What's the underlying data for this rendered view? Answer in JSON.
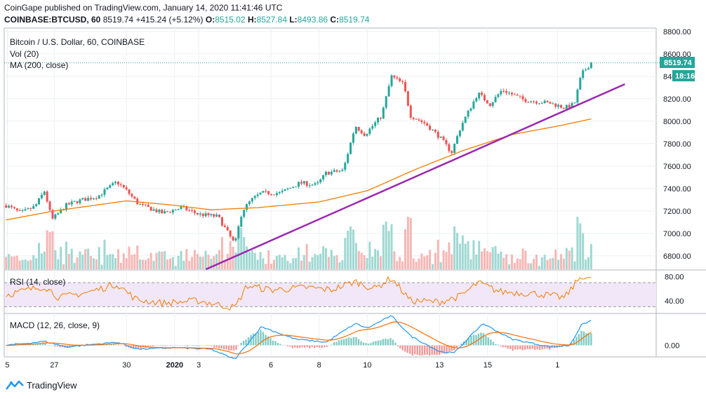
{
  "header": {
    "line1": "CoinGape published on TradingView.com, January 14, 2020 11:41:46 UTC",
    "symbol": "COINBASE:BTCUSD, 60",
    "last": "8519.74",
    "change": "+415.24 (+5.12%)",
    "open_label": "O:",
    "open": "8515.02",
    "high_label": "H:",
    "high": "8527.84",
    "low_label": "L:",
    "low": "8493.86",
    "close_label": "C:",
    "close": "8519.74"
  },
  "legend": {
    "title": "Bitcoin / U.S. Dollar, 60, COINBASE",
    "vol": "Vol (20)",
    "ma": "MA (200, close)",
    "rsi": "RSI (14, close)",
    "macd": "MACD (12, 26, close, 9)"
  },
  "price_tag": "8519.74",
  "countdown_tag": "18:16",
  "footer": {
    "brand": "TradingView"
  },
  "colors": {
    "up": "#26a69a",
    "down": "#ef5350",
    "ma": "#f57c00",
    "trend": "#9c27b0",
    "rsi": "#f57c00",
    "macd": "#2196f3",
    "signal": "#ff6d00"
  },
  "chart_data": [
    {
      "type": "candlestick",
      "title": "Bitcoin / U.S. Dollar, 60, COINBASE",
      "x_ticks": [
        "5",
        "27",
        "30",
        "2020",
        "3",
        "6",
        "8",
        "10",
        "13",
        "15",
        "1"
      ],
      "y_ticks": [
        6800,
        7000,
        7200,
        7400,
        7600,
        7800,
        8000,
        8200,
        8400,
        8600,
        8800
      ],
      "ylim": [
        6680,
        8830
      ],
      "anchors": [
        {
          "day": 25.0,
          "price": 7250
        },
        {
          "day": 25.6,
          "price": 7180
        },
        {
          "day": 26.2,
          "price": 7240
        },
        {
          "day": 26.6,
          "price": 7380
        },
        {
          "day": 26.9,
          "price": 7120
        },
        {
          "day": 27.5,
          "price": 7250
        },
        {
          "day": 28.0,
          "price": 7290
        },
        {
          "day": 28.8,
          "price": 7330
        },
        {
          "day": 29.6,
          "price": 7460
        },
        {
          "day": 30.0,
          "price": 7380
        },
        {
          "day": 30.5,
          "price": 7260
        },
        {
          "day": 31.5,
          "price": 7180
        },
        {
          "day": 32.3,
          "price": 7230
        },
        {
          "day": 33.0,
          "price": 7170
        },
        {
          "day": 33.8,
          "price": 7150
        },
        {
          "day": 34.5,
          "price": 6900
        },
        {
          "day": 34.8,
          "price": 7200
        },
        {
          "day": 35.2,
          "price": 7300
        },
        {
          "day": 35.6,
          "price": 7360
        },
        {
          "day": 36.4,
          "price": 7360
        },
        {
          "day": 37.2,
          "price": 7450
        },
        {
          "day": 37.9,
          "price": 7430
        },
        {
          "day": 38.3,
          "price": 7540
        },
        {
          "day": 39.0,
          "price": 7560
        },
        {
          "day": 39.5,
          "price": 7960
        },
        {
          "day": 39.9,
          "price": 7880
        },
        {
          "day": 40.6,
          "price": 8050
        },
        {
          "day": 41.0,
          "price": 8400
        },
        {
          "day": 41.5,
          "price": 8330
        },
        {
          "day": 41.8,
          "price": 8050
        },
        {
          "day": 42.4,
          "price": 7980
        },
        {
          "day": 43.0,
          "price": 7860
        },
        {
          "day": 43.5,
          "price": 7720
        },
        {
          "day": 43.9,
          "price": 7960
        },
        {
          "day": 44.6,
          "price": 8250
        },
        {
          "day": 45.1,
          "price": 8150
        },
        {
          "day": 45.6,
          "price": 8280
        },
        {
          "day": 46.5,
          "price": 8190
        },
        {
          "day": 47.6,
          "price": 8160
        },
        {
          "day": 48.2,
          "price": 8120
        },
        {
          "day": 48.6,
          "price": 8150
        },
        {
          "day": 48.9,
          "price": 8420
        },
        {
          "day": 49.3,
          "price": 8520
        }
      ],
      "ma200": [
        {
          "day": 25.0,
          "price": 7120
        },
        {
          "day": 27.0,
          "price": 7200
        },
        {
          "day": 30.0,
          "price": 7290
        },
        {
          "day": 32.0,
          "price": 7250
        },
        {
          "day": 33.5,
          "price": 7210
        },
        {
          "day": 35.5,
          "price": 7230
        },
        {
          "day": 38.0,
          "price": 7280
        },
        {
          "day": 40.0,
          "price": 7380
        },
        {
          "day": 42.0,
          "price": 7570
        },
        {
          "day": 44.0,
          "price": 7740
        },
        {
          "day": 46.0,
          "price": 7880
        },
        {
          "day": 48.0,
          "price": 7960
        },
        {
          "day": 49.3,
          "price": 8020
        }
      ],
      "trendline": [
        {
          "day": 33.3,
          "price": 6680
        },
        {
          "day": 50.7,
          "price": 8330
        }
      ],
      "last_price": 8519.74
    },
    {
      "type": "line",
      "title": "RSI (14, close)",
      "y_ticks": [
        40,
        80
      ],
      "ylim": [
        20,
        90
      ],
      "band": [
        30,
        70
      ],
      "anchors": [
        {
          "day": 25.0,
          "value": 50
        },
        {
          "day": 26.6,
          "value": 64
        },
        {
          "day": 27.2,
          "value": 45
        },
        {
          "day": 28.5,
          "value": 55
        },
        {
          "day": 29.6,
          "value": 68
        },
        {
          "day": 30.4,
          "value": 42
        },
        {
          "day": 31.5,
          "value": 36
        },
        {
          "day": 33.0,
          "value": 40
        },
        {
          "day": 34.5,
          "value": 28
        },
        {
          "day": 35.0,
          "value": 65
        },
        {
          "day": 36.0,
          "value": 58
        },
        {
          "day": 37.5,
          "value": 62
        },
        {
          "day": 38.5,
          "value": 58
        },
        {
          "day": 39.5,
          "value": 72
        },
        {
          "day": 40.3,
          "value": 60
        },
        {
          "day": 41.0,
          "value": 78
        },
        {
          "day": 41.8,
          "value": 40
        },
        {
          "day": 43.0,
          "value": 38
        },
        {
          "day": 43.9,
          "value": 48
        },
        {
          "day": 44.6,
          "value": 70
        },
        {
          "day": 45.5,
          "value": 55
        },
        {
          "day": 47.0,
          "value": 52
        },
        {
          "day": 48.2,
          "value": 45
        },
        {
          "day": 48.9,
          "value": 82
        },
        {
          "day": 49.3,
          "value": 74
        }
      ]
    },
    {
      "type": "histogram",
      "title": "MACD (12, 26, close, 9)",
      "y_ticks": [
        0.0
      ],
      "ylim": [
        -70,
        200
      ],
      "macd": [
        {
          "day": 25.0,
          "value": 0
        },
        {
          "day": 26.6,
          "value": 25
        },
        {
          "day": 27.5,
          "value": -10
        },
        {
          "day": 29.6,
          "value": 20
        },
        {
          "day": 30.5,
          "value": -25
        },
        {
          "day": 32.0,
          "value": -15
        },
        {
          "day": 33.5,
          "value": -25
        },
        {
          "day": 34.5,
          "value": -90
        },
        {
          "day": 35.6,
          "value": 120
        },
        {
          "day": 37.0,
          "value": 40
        },
        {
          "day": 38.3,
          "value": 20
        },
        {
          "day": 39.5,
          "value": 140
        },
        {
          "day": 40.0,
          "value": 110
        },
        {
          "day": 41.0,
          "value": 190
        },
        {
          "day": 41.8,
          "value": 60
        },
        {
          "day": 43.0,
          "value": -40
        },
        {
          "day": 43.6,
          "value": -50
        },
        {
          "day": 44.8,
          "value": 140
        },
        {
          "day": 46.0,
          "value": 40
        },
        {
          "day": 47.6,
          "value": -10
        },
        {
          "day": 48.4,
          "value": 0
        },
        {
          "day": 48.9,
          "value": 130
        },
        {
          "day": 49.3,
          "value": 160
        }
      ]
    }
  ]
}
